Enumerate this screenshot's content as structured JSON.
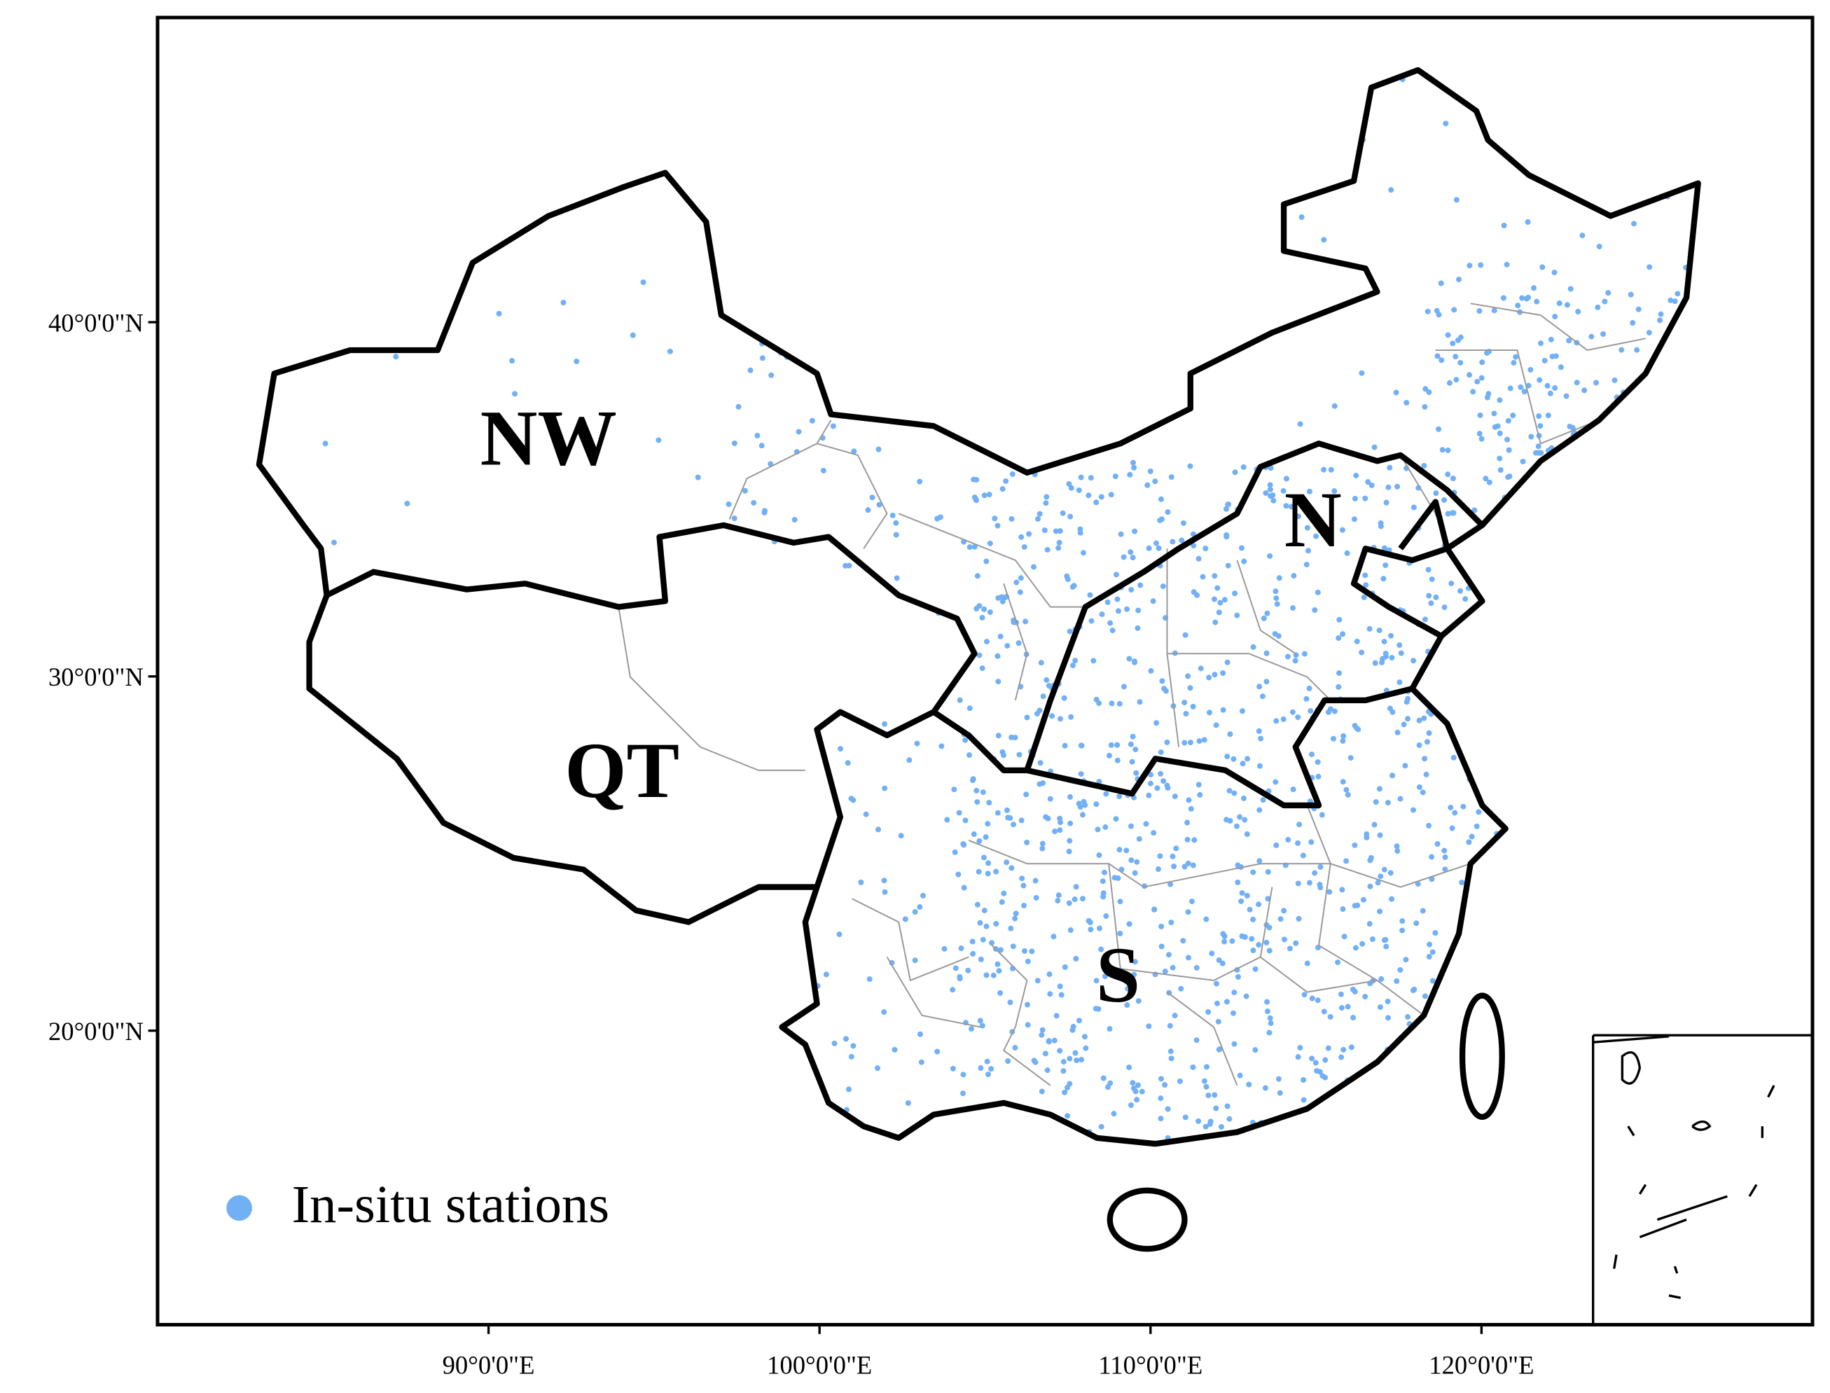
{
  "chart_data": {
    "type": "map",
    "xlim": [
      80,
      130
    ],
    "ylim": [
      11.7,
      48.6
    ],
    "xticks": [
      {
        "value": 90,
        "label": "90°0'0\"E"
      },
      {
        "value": 100,
        "label": "100°0'0\"E"
      },
      {
        "value": 110,
        "label": "110°0'0\"E"
      },
      {
        "value": 120,
        "label": "120°0'0\"E"
      }
    ],
    "yticks": [
      {
        "value": 40,
        "label": "40°0'0\"N"
      },
      {
        "value": 30,
        "label": "30°0'0\"N"
      },
      {
        "value": 20,
        "label": "20°0'0\"N"
      }
    ],
    "regions": [
      {
        "label": "NW"
      },
      {
        "label": "QT"
      },
      {
        "label": "N"
      },
      {
        "label": "S"
      }
    ],
    "legend": {
      "label": "In-situ stations",
      "color": "#72b0f6"
    }
  }
}
